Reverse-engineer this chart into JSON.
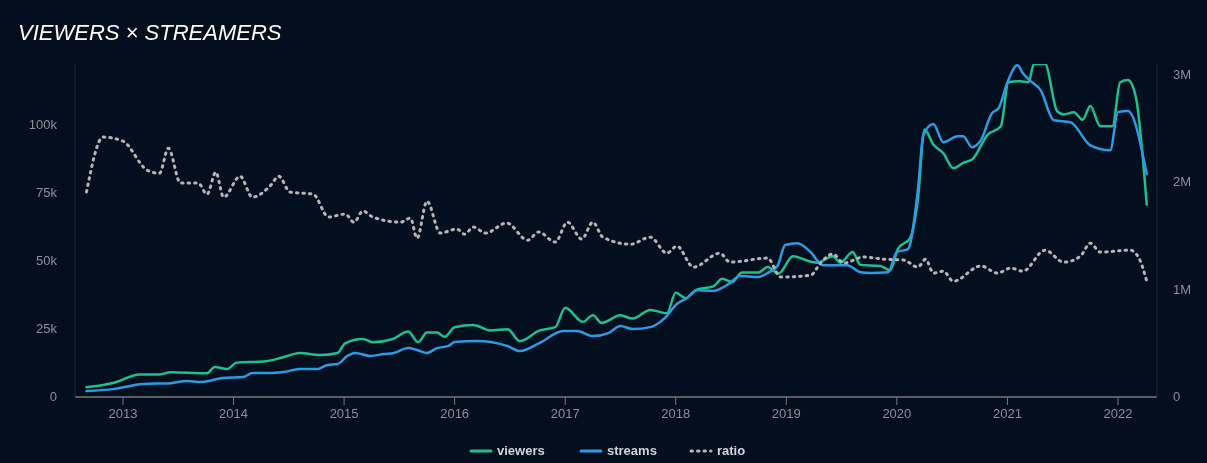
{
  "chart_data": {
    "type": "line",
    "title": "VIEWERS × STREAMERS",
    "xlim": [
      2012.566,
      2022.353
    ],
    "xticks": [
      2013,
      2014,
      2015,
      2016,
      2017,
      2018,
      2019,
      2020,
      2021,
      2022
    ],
    "ylim": [
      0,
      122500
    ],
    "yticks": [
      0,
      {
        "value": 25000,
        "label": "25k"
      },
      {
        "value": 50000,
        "label": "50k"
      },
      {
        "value": 75000,
        "label": "75k"
      },
      {
        "value": 100000,
        "label": "100k"
      }
    ],
    "y2lim": [
      0,
      3100000
    ],
    "y2ticks": [
      0,
      {
        "value": 1000000,
        "label": "1M"
      },
      {
        "value": 2000000,
        "label": "2M"
      },
      {
        "value": 3000000,
        "label": "3M"
      }
    ],
    "grid": false,
    "legend": "bottom",
    "series": [
      {
        "name": "viewers",
        "color": "#1fbf8f",
        "axis": "y2",
        "line_style": "solid",
        "x": [
          2012.67,
          2012.91,
          2013.15,
          2013.33,
          2013.43,
          2013.76,
          2013.83,
          2013.94,
          2014.03,
          2014.27,
          2014.45,
          2014.6,
          2014.78,
          2014.94,
          2015.01,
          2015.17,
          2015.26,
          2015.44,
          2015.58,
          2015.67,
          2015.75,
          2015.84,
          2015.91,
          2016.0,
          2016.17,
          2016.32,
          2016.48,
          2016.59,
          2016.77,
          2016.91,
          2017.0,
          2017.16,
          2017.25,
          2017.33,
          2017.5,
          2017.61,
          2017.77,
          2017.92,
          2018.0,
          2018.09,
          2018.19,
          2018.34,
          2018.42,
          2018.51,
          2018.6,
          2018.75,
          2018.83,
          2018.93,
          2019.06,
          2019.22,
          2019.28,
          2019.42,
          2019.49,
          2019.6,
          2019.67,
          2019.85,
          2019.94,
          2020.01,
          2020.12,
          2020.19,
          2020.25,
          2020.33,
          2020.42,
          2020.51,
          2020.6,
          2020.68,
          2020.82,
          2020.94,
          2021.01,
          2021.12,
          2021.19,
          2021.24,
          2021.34,
          2021.45,
          2021.51,
          2021.6,
          2021.68,
          2021.75,
          2021.84,
          2021.95,
          2022.02,
          2022.09,
          2022.16,
          2022.26
        ],
        "values": [
          90000,
          130000,
          210000,
          210000,
          230000,
          220000,
          280000,
          260000,
          320000,
          330000,
          370000,
          410000,
          390000,
          410000,
          500000,
          540000,
          510000,
          540000,
          610000,
          510000,
          600000,
          600000,
          560000,
          650000,
          670000,
          620000,
          630000,
          520000,
          620000,
          650000,
          830000,
          700000,
          760000,
          690000,
          760000,
          730000,
          810000,
          780000,
          970000,
          920000,
          1000000,
          1030000,
          1100000,
          1070000,
          1160000,
          1160000,
          1210000,
          1150000,
          1310000,
          1260000,
          1250000,
          1310000,
          1250000,
          1350000,
          1230000,
          1220000,
          1180000,
          1380000,
          1480000,
          1840000,
          2490000,
          2350000,
          2270000,
          2130000,
          2180000,
          2210000,
          2440000,
          2520000,
          2930000,
          2940000,
          2930000,
          3100000,
          3100000,
          2660000,
          2630000,
          2650000,
          2580000,
          2710000,
          2520000,
          2520000,
          2930000,
          2950000,
          2800000,
          1790000
        ]
      },
      {
        "name": "streams",
        "color": "#2e9be0",
        "line_style": "solid",
        "x": [
          2012.67,
          2012.91,
          2013.18,
          2013.43,
          2013.58,
          2013.7,
          2013.9,
          2014.09,
          2014.17,
          2014.33,
          2014.45,
          2014.6,
          2014.76,
          2014.85,
          2014.94,
          2015.03,
          2015.1,
          2015.24,
          2015.36,
          2015.45,
          2015.58,
          2015.66,
          2015.75,
          2015.84,
          2015.94,
          2016.0,
          2016.2,
          2016.48,
          2016.59,
          2016.77,
          2016.98,
          2017.11,
          2017.25,
          2017.39,
          2017.5,
          2017.61,
          2017.77,
          2017.9,
          2018.01,
          2018.1,
          2018.19,
          2018.34,
          2018.49,
          2018.58,
          2018.75,
          2018.83,
          2018.92,
          2018.99,
          2019.1,
          2019.22,
          2019.33,
          2019.55,
          2019.67,
          2019.76,
          2019.92,
          2020.0,
          2020.1,
          2020.19,
          2020.24,
          2020.33,
          2020.42,
          2020.55,
          2020.6,
          2020.68,
          2020.76,
          2020.86,
          2020.92,
          2021.0,
          2021.09,
          2021.14,
          2021.21,
          2021.3,
          2021.42,
          2021.57,
          2021.75,
          2021.93,
          2022.0,
          2022.09,
          2022.26
        ],
        "values": [
          2200,
          2900,
          4800,
          5100,
          5900,
          5500,
          7000,
          7400,
          8800,
          8800,
          9200,
          10300,
          10300,
          11800,
          12100,
          15100,
          16200,
          15100,
          15800,
          16200,
          18000,
          17300,
          16200,
          18000,
          18700,
          20200,
          20600,
          18700,
          16900,
          19900,
          24300,
          24300,
          22400,
          23500,
          26100,
          25000,
          25700,
          29000,
          34200,
          36400,
          39300,
          39000,
          41900,
          44500,
          44100,
          45600,
          48200,
          55900,
          56600,
          53300,
          48500,
          48500,
          45900,
          45600,
          45900,
          53300,
          54400,
          76100,
          96300,
          100400,
          93700,
          95900,
          95900,
          91900,
          94500,
          104400,
          106200,
          115800,
          122000,
          119100,
          116200,
          112900,
          101800,
          101100,
          92600,
          90800,
          104800,
          105200,
          82000
        ]
      },
      {
        "name": "ratio",
        "color": "#b5b5b5",
        "line_style": "dotted",
        "x": [
          2012.67,
          2012.82,
          2013.0,
          2013.22,
          2013.33,
          2013.41,
          2013.52,
          2013.68,
          2013.76,
          2013.84,
          2013.91,
          2014.06,
          2014.17,
          2014.33,
          2014.41,
          2014.51,
          2014.72,
          2014.86,
          2015.01,
          2015.09,
          2015.17,
          2015.26,
          2015.51,
          2015.6,
          2015.66,
          2015.75,
          2015.87,
          2016.02,
          2016.09,
          2016.17,
          2016.28,
          2016.47,
          2016.66,
          2016.76,
          2016.91,
          2017.02,
          2017.15,
          2017.25,
          2017.34,
          2017.59,
          2017.77,
          2017.92,
          2018.01,
          2018.16,
          2018.4,
          2018.49,
          2018.83,
          2018.95,
          2019.22,
          2019.31,
          2019.42,
          2019.52,
          2019.7,
          2019.88,
          2020.06,
          2020.19,
          2020.26,
          2020.33,
          2020.42,
          2020.51,
          2020.76,
          2020.91,
          2021.03,
          2021.14,
          2021.34,
          2021.51,
          2021.66,
          2021.75,
          2021.84,
          2022.11,
          2022.19,
          2022.26
        ],
        "values": [
          75400,
          95600,
          94100,
          83400,
          82300,
          91500,
          78700,
          78700,
          74600,
          82700,
          73500,
          81200,
          73500,
          77600,
          81200,
          75400,
          74600,
          66200,
          67300,
          64300,
          68400,
          66200,
          64300,
          65800,
          58400,
          72000,
          60300,
          61800,
          59900,
          62500,
          60300,
          64000,
          57700,
          60700,
          57000,
          64300,
          58100,
          64300,
          58800,
          56200,
          58800,
          52900,
          55500,
          47800,
          52900,
          49600,
          51100,
          44100,
          44800,
          49300,
          52600,
          49300,
          51500,
          50700,
          50400,
          47800,
          50700,
          45600,
          46300,
          42600,
          48200,
          45600,
          47400,
          46300,
          54000,
          49600,
          51800,
          56600,
          53300,
          54000,
          51100,
          42600
        ]
      }
    ]
  }
}
